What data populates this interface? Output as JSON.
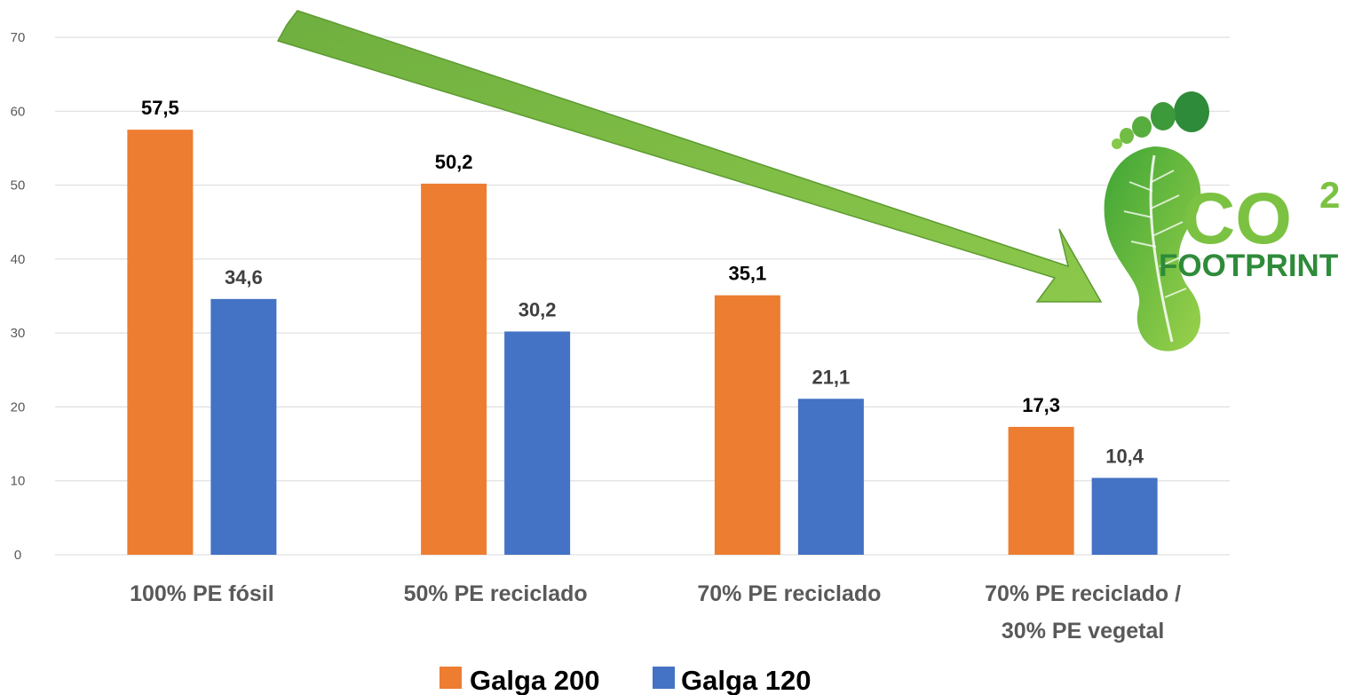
{
  "chart_data": {
    "type": "bar",
    "categories": [
      [
        "100% PE fósil"
      ],
      [
        "50% PE reciclado"
      ],
      [
        "70% PE reciclado"
      ],
      [
        "70% PE reciclado /",
        "30% PE vegetal"
      ]
    ],
    "series": [
      {
        "name": "Galga 200",
        "values": [
          57.5,
          50.2,
          35.1,
          17.3
        ],
        "labels": [
          "57,5",
          "50,2",
          "35,1",
          "17,3"
        ],
        "color": "#ED7D31",
        "label_color": "#000000"
      },
      {
        "name": "Galga 120",
        "values": [
          34.6,
          30.2,
          21.1,
          10.4
        ],
        "labels": [
          "34,6",
          "30,2",
          "21,1",
          "10,4"
        ],
        "color": "#4472C4",
        "label_color": "#404040"
      }
    ],
    "title": "",
    "xlabel": "",
    "ylabel": "",
    "ylim": [
      0,
      70
    ],
    "yticks": [
      0,
      10,
      20,
      30,
      40,
      50,
      60,
      70
    ],
    "grid": true,
    "legend_position": "bottom"
  },
  "colors": {
    "grid": "#D9D9D9",
    "arrow": "#7AB648",
    "arrow_dark": "#5E9A32",
    "logo_green": "#7CC242",
    "logo_dark": "#2E8B3A"
  },
  "logo": {
    "main": "CO",
    "superscript": "2",
    "sub": "FOOTPRINT",
    "icon": "leaf-footprint-icon"
  }
}
